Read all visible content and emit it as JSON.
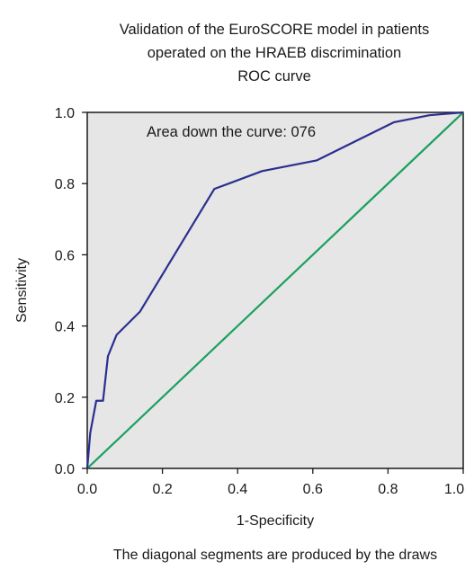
{
  "chart_data": {
    "type": "line",
    "title_lines": [
      "Validation of the EuroSCORE model in patients",
      "operated on the HRAEB discrimination",
      "ROC curve"
    ],
    "xlabel": "1-Specificity",
    "ylabel": "Sensitivity",
    "xlim": [
      0,
      1
    ],
    "ylim": [
      0,
      1
    ],
    "x_ticks": [
      "0.0",
      "0.2",
      "0.4",
      "0.6",
      "0.8",
      "1.0"
    ],
    "y_ticks": [
      "0.0",
      "0.2",
      "0.4",
      "0.6",
      "0.8",
      "1.0"
    ],
    "annotation": "Area down the curve: 076",
    "footnote": "The diagonal segments are produced by the draws",
    "grid": false,
    "series": [
      {
        "color": "#2b2f8f",
        "x": [
          0.0,
          0.008,
          0.024,
          0.042,
          0.055,
          0.078,
          0.14,
          0.338,
          0.465,
          0.61,
          0.815,
          0.91,
          1.0
        ],
        "y": [
          0.0,
          0.1,
          0.19,
          0.19,
          0.315,
          0.375,
          0.44,
          0.785,
          0.835,
          0.865,
          0.972,
          0.992,
          1.0
        ]
      },
      {
        "color": "#1aa060",
        "x": [
          0,
          1
        ],
        "y": [
          0,
          1
        ]
      }
    ],
    "background": "#e6e6e6"
  }
}
